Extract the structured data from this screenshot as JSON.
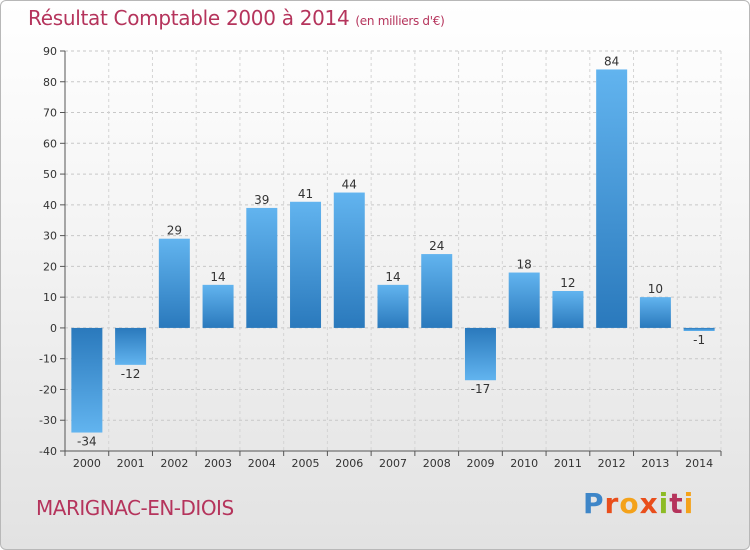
{
  "header": {
    "title": "Résultat Comptable 2000 à 2014",
    "unit": "(en milliers d'€)"
  },
  "footer": {
    "location": "MARIGNAC-EN-DIOIS",
    "logo": "Proxiti"
  },
  "colors": {
    "bar_light": "#5aacea",
    "bar_dark": "#2b7cbf",
    "title": "#b5345c"
  },
  "chart_data": {
    "type": "bar",
    "title": "Résultat Comptable 2000 à 2014",
    "subtitle": "(en milliers d'€)",
    "xlabel": "",
    "ylabel": "",
    "categories": [
      "2000",
      "2001",
      "2002",
      "2003",
      "2004",
      "2005",
      "2006",
      "2007",
      "2008",
      "2009",
      "2010",
      "2011",
      "2012",
      "2013",
      "2014"
    ],
    "values": [
      -34,
      -12,
      29,
      14,
      39,
      41,
      44,
      14,
      24,
      -17,
      18,
      12,
      84,
      10,
      -1
    ],
    "ylim": [
      -40,
      90
    ],
    "yticks": [
      -40,
      -30,
      -20,
      -10,
      0,
      10,
      20,
      30,
      40,
      50,
      60,
      70,
      80,
      90
    ],
    "grid": "horizontal-dashed",
    "legend": "none"
  }
}
